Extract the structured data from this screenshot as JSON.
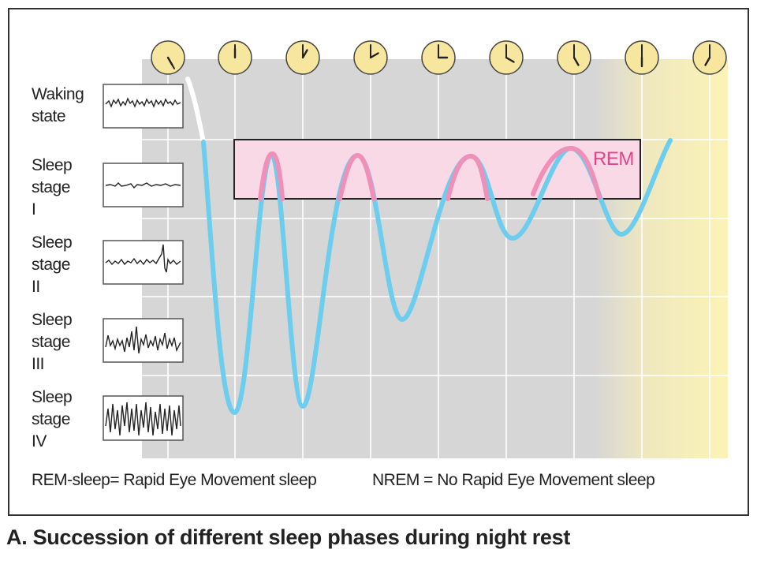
{
  "rem_label": "REM",
  "stages": [
    {
      "key": "waking",
      "label": "Waking\nstate"
    },
    {
      "key": "stage-1",
      "label": "Sleep\nstage\nI"
    },
    {
      "key": "stage-2",
      "label": "Sleep\nstage\nII"
    },
    {
      "key": "stage-3",
      "label": "Sleep\nstage\nIII"
    },
    {
      "key": "stage-4",
      "label": "Sleep\nstage\nIV"
    }
  ],
  "legend": {
    "rem": "REM-sleep= Rapid Eye Movement sleep",
    "nrem": "NREM = No Rapid Eye Movement sleep"
  },
  "caption": "A. Succession of different sleep phases during night rest",
  "clocks": [
    {
      "hour_angle": 150,
      "minute_angle": 150
    },
    {
      "hour_angle": 0,
      "minute_angle": 0
    },
    {
      "hour_angle": 30,
      "minute_angle": 0
    },
    {
      "hour_angle": 60,
      "minute_angle": 0
    },
    {
      "hour_angle": 90,
      "minute_angle": 0
    },
    {
      "hour_angle": 120,
      "minute_angle": 0
    },
    {
      "hour_angle": 150,
      "minute_angle": 0
    },
    {
      "hour_angle": 180,
      "minute_angle": 0
    },
    {
      "hour_angle": 210,
      "minute_angle": 0
    }
  ],
  "colors": {
    "panel": "#d6d6d6",
    "clock_face": "#f7e79e",
    "dawn": "#fbf2b4",
    "nrem_curve": "#6dcdee",
    "rem_curve": "#f08fb8",
    "rem_box": "#f9d9e6",
    "rem_text": "#e0458a"
  }
}
